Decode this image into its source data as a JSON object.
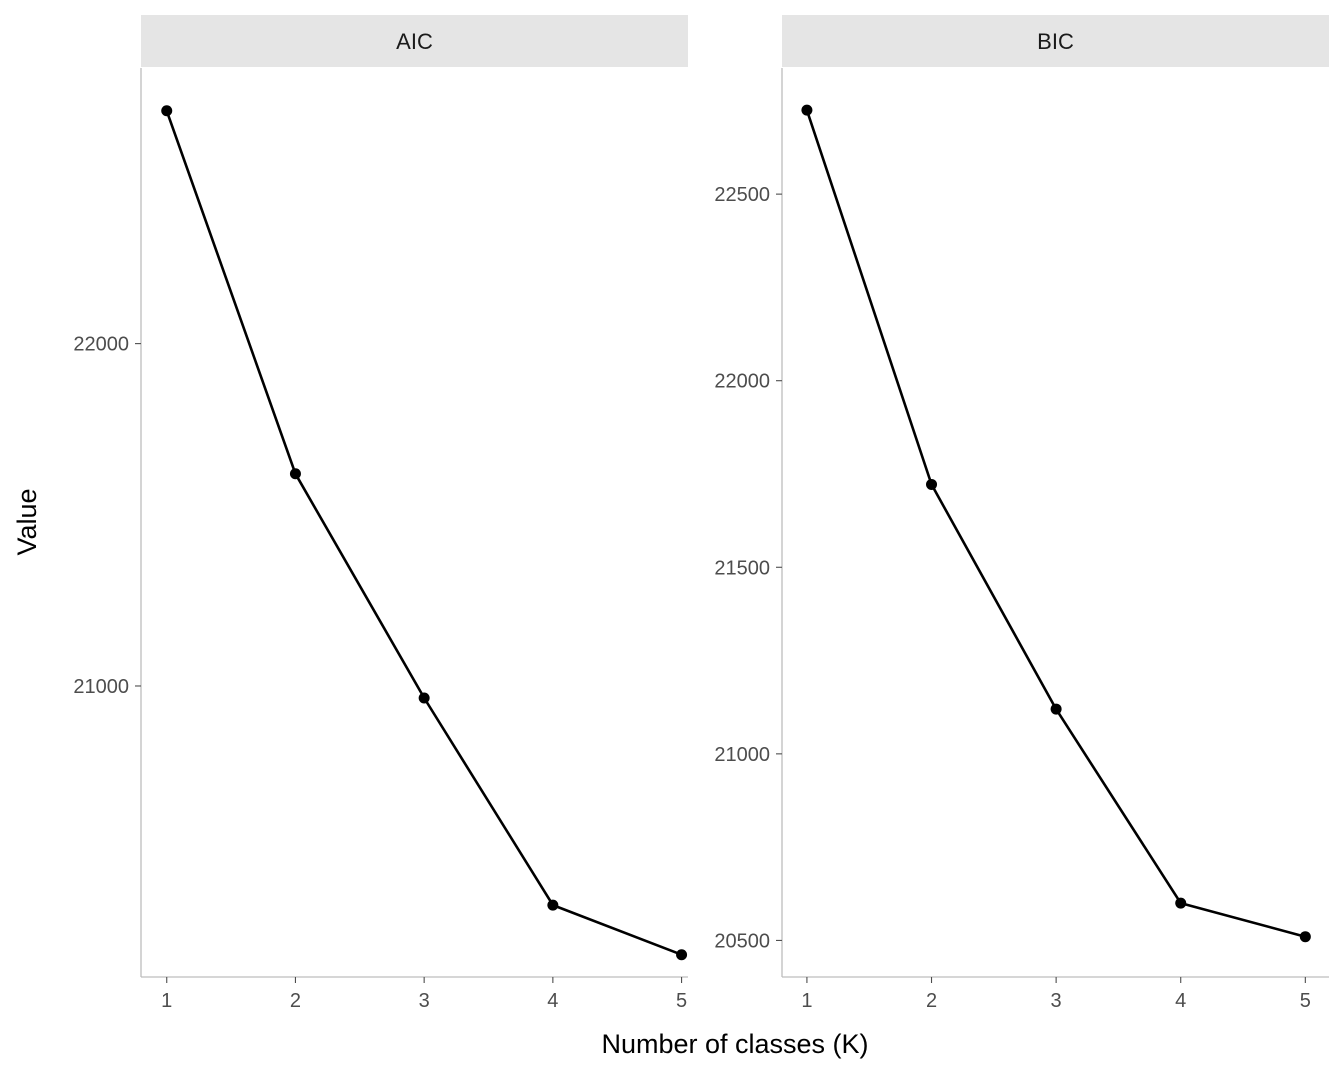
{
  "chart_data": {
    "type": "line",
    "facets": [
      {
        "strip_label": "AIC",
        "x": [
          1,
          2,
          3,
          4,
          5
        ],
        "y": [
          22680,
          21620,
          20965,
          20360,
          20215
        ],
        "x_ticks": [
          "1",
          "2",
          "3",
          "4",
          "5"
        ],
        "y_ticks": [
          {
            "value": 21000,
            "label": "21000"
          },
          {
            "value": 22000,
            "label": "22000"
          }
        ],
        "xlim": [
          0.8,
          5.05
        ],
        "ylim": [
          20150,
          22805
        ]
      },
      {
        "strip_label": "BIC",
        "x": [
          1,
          2,
          3,
          4,
          5
        ],
        "y": [
          22725,
          21722,
          21120,
          20600,
          20510
        ],
        "x_ticks": [
          "1",
          "2",
          "3",
          "4",
          "5"
        ],
        "y_ticks": [
          {
            "value": 20500,
            "label": "20500"
          },
          {
            "value": 21000,
            "label": "21000"
          },
          {
            "value": 21500,
            "label": "21500"
          },
          {
            "value": 22000,
            "label": "22000"
          },
          {
            "value": 22500,
            "label": "22500"
          }
        ],
        "xlim": [
          0.8,
          5.19
        ],
        "ylim": [
          20402,
          22838
        ]
      }
    ],
    "xlabel": "Number of classes (K)",
    "ylabel": "Value",
    "grid": false,
    "legend": "none",
    "color": "#000000",
    "strip_color": "#e5e5e5"
  }
}
